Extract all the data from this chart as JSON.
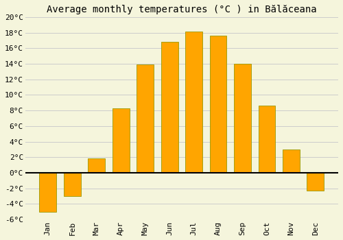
{
  "title": "Average monthly temperatures (°C ) in Bălăceana",
  "months": [
    "Jan",
    "Feb",
    "Mar",
    "Apr",
    "May",
    "Jun",
    "Jul",
    "Aug",
    "Sep",
    "Oct",
    "Nov",
    "Dec"
  ],
  "temperatures": [
    -5.0,
    -3.0,
    1.8,
    8.3,
    13.9,
    16.8,
    18.1,
    17.6,
    14.0,
    8.6,
    3.0,
    -2.3
  ],
  "bar_color": "#FFA500",
  "bar_edge_color": "#999900",
  "background_color": "#F5F5DC",
  "ylim": [
    -6,
    20
  ],
  "yticks": [
    -6,
    -4,
    -2,
    0,
    2,
    4,
    6,
    8,
    10,
    12,
    14,
    16,
    18,
    20
  ],
  "ytick_labels": [
    "-6°C",
    "-4°C",
    "-2°C",
    "0°C",
    "2°C",
    "4°C",
    "6°C",
    "8°C",
    "10°C",
    "12°C",
    "14°C",
    "16°C",
    "18°C",
    "20°C"
  ],
  "grid_color": "#cccccc",
  "zero_line_color": "#000000",
  "title_fontsize": 10,
  "tick_fontsize": 8,
  "bar_width": 0.7
}
